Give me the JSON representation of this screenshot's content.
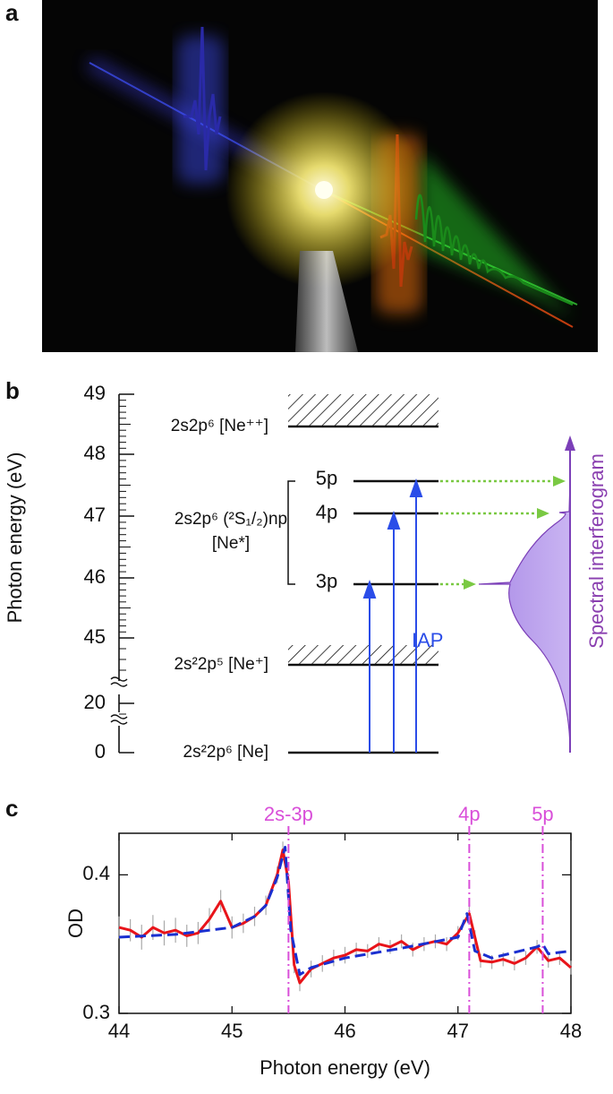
{
  "panel_a": {
    "label": "a"
  },
  "panel_b": {
    "label": "b",
    "axis_title": "Photon energy (eV)",
    "yticks": [
      49,
      48,
      47,
      46,
      45,
      20,
      0
    ],
    "level_labels": [
      "2s2p⁶ [Ne⁺⁺]",
      "2s2p⁶ (²S₁/₂)np",
      "[Ne*]",
      "2s²2p⁵ [Ne⁺]",
      "2s²2p⁶ [Ne]"
    ],
    "states": [
      "5p",
      "4p",
      "3p"
    ],
    "pulse_label": "IAP",
    "signal_label": "Spectral interferogram"
  },
  "panel_c": {
    "label": "c"
  },
  "chart_data": {
    "type": "line",
    "xlabel": "Photon energy (eV)",
    "ylabel": "OD",
    "xlim": [
      44,
      48
    ],
    "ylim": [
      0.3,
      0.43
    ],
    "xticks": [
      44,
      45,
      46,
      47,
      48
    ],
    "yticks": [
      0.3,
      0.4
    ],
    "annotations": [
      {
        "text": "2s-3p",
        "x": 45.5
      },
      {
        "text": "4p",
        "x": 47.1
      },
      {
        "text": "5p",
        "x": 47.75
      }
    ],
    "annotation_color": "#d94fd9",
    "series": [
      {
        "color": "#e8141a",
        "error_color": "#aaaaaa",
        "x": [
          44.0,
          44.1,
          44.2,
          44.3,
          44.4,
          44.5,
          44.6,
          44.7,
          44.8,
          44.9,
          45.0,
          45.1,
          45.2,
          45.3,
          45.4,
          45.45,
          45.5,
          45.55,
          45.6,
          45.7,
          45.8,
          45.9,
          46.0,
          46.1,
          46.2,
          46.3,
          46.4,
          46.5,
          46.6,
          46.7,
          46.8,
          46.9,
          47.0,
          47.1,
          47.15,
          47.2,
          47.3,
          47.4,
          47.5,
          47.6,
          47.7,
          47.8,
          47.9,
          48.0
        ],
        "values": [
          0.362,
          0.36,
          0.355,
          0.362,
          0.358,
          0.36,
          0.356,
          0.358,
          0.368,
          0.381,
          0.362,
          0.365,
          0.37,
          0.378,
          0.4,
          0.418,
          0.395,
          0.335,
          0.322,
          0.332,
          0.336,
          0.34,
          0.342,
          0.346,
          0.345,
          0.35,
          0.348,
          0.352,
          0.346,
          0.35,
          0.352,
          0.35,
          0.358,
          0.372,
          0.355,
          0.338,
          0.337,
          0.339,
          0.336,
          0.34,
          0.348,
          0.338,
          0.34,
          0.333
        ],
        "errors": [
          0.008,
          0.008,
          0.009,
          0.009,
          0.009,
          0.009,
          0.008,
          0.008,
          0.008,
          0.008,
          0.008,
          0.007,
          0.007,
          0.007,
          0.006,
          0.006,
          0.006,
          0.006,
          0.006,
          0.006,
          0.006,
          0.006,
          0.006,
          0.005,
          0.005,
          0.005,
          0.005,
          0.005,
          0.005,
          0.005,
          0.005,
          0.005,
          0.005,
          0.005,
          0.005,
          0.005,
          0.005,
          0.005,
          0.005,
          0.005,
          0.005,
          0.005,
          0.005,
          0.005
        ]
      },
      {
        "color": "#1a2fd0",
        "dashed": true,
        "x": [
          44.0,
          44.5,
          45.0,
          45.2,
          45.3,
          45.4,
          45.47,
          45.52,
          45.6,
          45.7,
          46.0,
          46.5,
          47.0,
          47.08,
          47.15,
          47.3,
          47.7,
          47.75,
          47.8,
          48.0
        ],
        "values": [
          0.355,
          0.357,
          0.362,
          0.37,
          0.378,
          0.398,
          0.42,
          0.36,
          0.328,
          0.333,
          0.34,
          0.347,
          0.355,
          0.372,
          0.345,
          0.34,
          0.348,
          0.35,
          0.343,
          0.345
        ]
      }
    ]
  }
}
